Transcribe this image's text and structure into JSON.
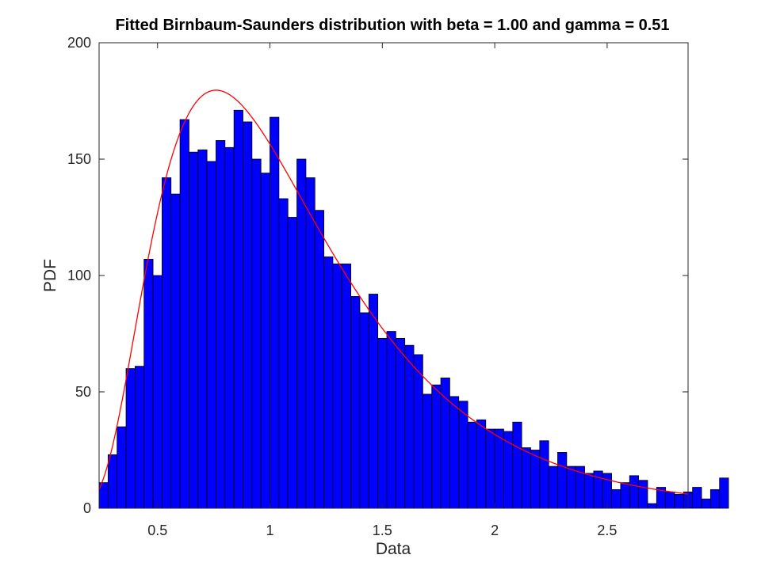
{
  "chart_data": {
    "type": "bar",
    "title": "Fitted Birnbaum-Saunders distribution with beta = 1.00 and gamma = 0.51",
    "xlabel": "Data",
    "ylabel": "PDF",
    "xlim": [
      0.24,
      2.86
    ],
    "ylim": [
      0,
      200
    ],
    "xticks": [
      0.5,
      1,
      1.5,
      2,
      2.5
    ],
    "xtick_labels": [
      "0.5",
      "1",
      "1.5",
      "2",
      "2.5"
    ],
    "yticks": [
      0,
      50,
      100,
      150,
      200
    ],
    "ytick_labels": [
      "0",
      "50",
      "100",
      "150",
      "200"
    ],
    "grid": false,
    "bin_start": 0.24,
    "bin_width": 0.04,
    "values": [
      11,
      23,
      35,
      60,
      61,
      107,
      100,
      142,
      135,
      167,
      153,
      154,
      149,
      158,
      155,
      171,
      166,
      150,
      144,
      168,
      133,
      125,
      150,
      142,
      128,
      108,
      105,
      105,
      91,
      84,
      92,
      73,
      76,
      73,
      70,
      66,
      49,
      53,
      56,
      48,
      46,
      37,
      38,
      34,
      34,
      33,
      37,
      26,
      25,
      29,
      18,
      24,
      18,
      18,
      15,
      16,
      15,
      8,
      11,
      14,
      12,
      2,
      9,
      7,
      6,
      7,
      9,
      4,
      8,
      13
    ],
    "bar_color": "#0000ff",
    "fit_color": "#ff0000",
    "fit_curve": {
      "name": "Birnbaum-Saunders fit",
      "beta": 1.0,
      "gamma": 0.51,
      "scale": 200
    }
  }
}
